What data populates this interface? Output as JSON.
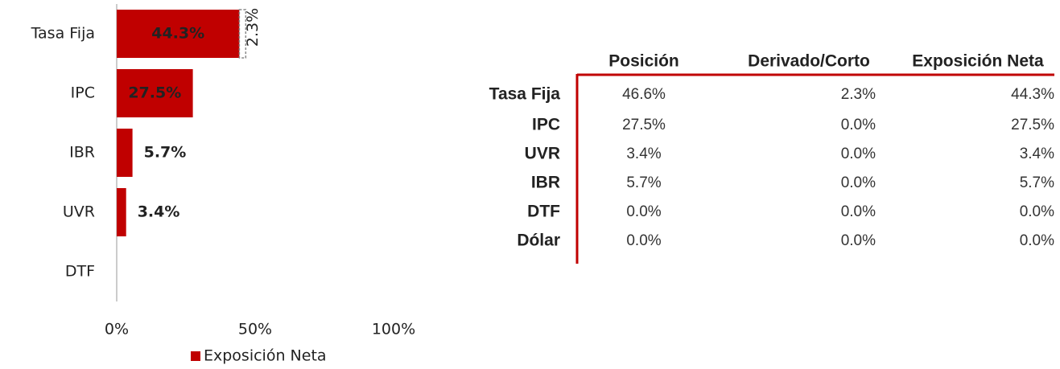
{
  "chart_data": {
    "type": "hbar",
    "categories": [
      "Tasa Fija",
      "IPC",
      "IBR",
      "UVR",
      "DTF"
    ],
    "series": [
      {
        "name": "Exposición Neta",
        "color": "#c00000",
        "values": [
          44.3,
          27.5,
          5.7,
          3.4,
          0
        ],
        "value_labels": [
          "44.3%",
          "27.5%",
          "5.7%",
          "3.4%",
          null
        ]
      }
    ],
    "annotations": [
      {
        "label": "2.3%",
        "value": 2.3
      }
    ],
    "xlim": [
      0,
      100
    ],
    "xticks": [
      {
        "value": 0,
        "label": "0%"
      },
      {
        "value": 50,
        "label": "50%"
      },
      {
        "value": 100,
        "label": "100%"
      }
    ],
    "legend": "bottom"
  },
  "table": {
    "header": [
      "Posición",
      "Derivado/Corto",
      "Exposición Neta"
    ],
    "rows": [
      {
        "label": "Tasa Fija",
        "values": [
          "46.6%",
          "2.3%",
          "44.3%"
        ]
      },
      {
        "label": "IPC",
        "values": [
          "27.5%",
          "0.0%",
          "27.5%"
        ]
      },
      {
        "label": "UVR",
        "values": [
          "3.4%",
          "0.0%",
          "3.4%"
        ]
      },
      {
        "label": "IBR",
        "values": [
          "5.7%",
          "0.0%",
          "5.7%"
        ]
      },
      {
        "label": "DTF",
        "values": [
          "0.0%",
          "0.0%",
          "0.0%"
        ]
      },
      {
        "label": "Dólar",
        "values": [
          "0.0%",
          "0.0%",
          "0.0%"
        ]
      }
    ]
  }
}
